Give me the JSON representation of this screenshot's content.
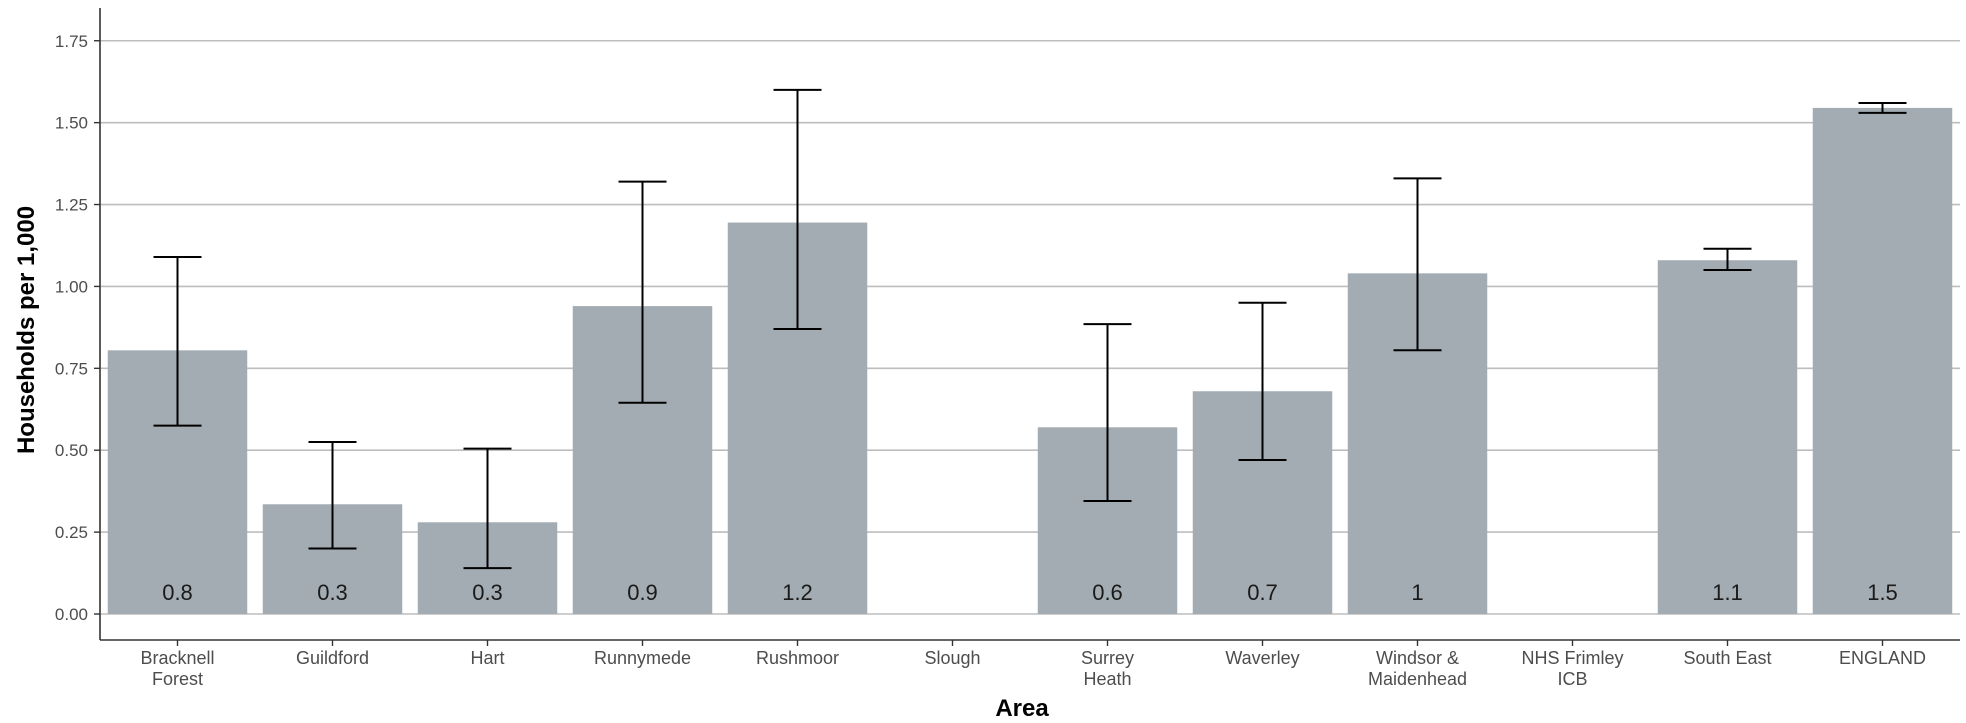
{
  "chart_data": {
    "type": "bar",
    "title": "",
    "xlabel": "Area",
    "ylabel": "Households per 1,000",
    "ylim": [
      0,
      1.85
    ],
    "yticks": [
      0,
      0.25,
      0.5,
      0.75,
      1.0,
      1.25,
      1.5,
      1.75
    ],
    "ytick_labels": [
      "0.00",
      "0.25",
      "0.50",
      "0.75",
      "1.00",
      "1.25",
      "1.50",
      "1.75"
    ],
    "grid": "horizontal",
    "bar_color": "#a3acb3",
    "categories": [
      [
        "Bracknell",
        "Forest"
      ],
      [
        "Guildford"
      ],
      [
        "Hart"
      ],
      [
        "Runnymede"
      ],
      [
        "Rushmoor"
      ],
      [
        "Slough"
      ],
      [
        "Surrey",
        "Heath"
      ],
      [
        "Waverley"
      ],
      [
        "Windsor &",
        "Maidenhead"
      ],
      [
        "NHS Frimley",
        "ICB"
      ],
      [
        "South East"
      ],
      [
        "ENGLAND"
      ]
    ],
    "values": [
      0.805,
      0.335,
      0.28,
      0.94,
      1.195,
      null,
      0.57,
      0.68,
      1.04,
      null,
      1.08,
      1.545
    ],
    "ci_lower": [
      0.575,
      0.2,
      0.14,
      0.645,
      0.87,
      null,
      0.345,
      0.47,
      0.805,
      null,
      1.05,
      1.53
    ],
    "ci_upper": [
      1.09,
      0.525,
      0.505,
      1.32,
      1.6,
      null,
      0.885,
      0.95,
      1.33,
      null,
      1.115,
      1.56
    ],
    "data_labels": [
      "0.8",
      "0.3",
      "0.3",
      "0.9",
      "1.2",
      "",
      "0.6",
      "0.7",
      "1",
      "",
      "1.1",
      "1.5"
    ]
  }
}
